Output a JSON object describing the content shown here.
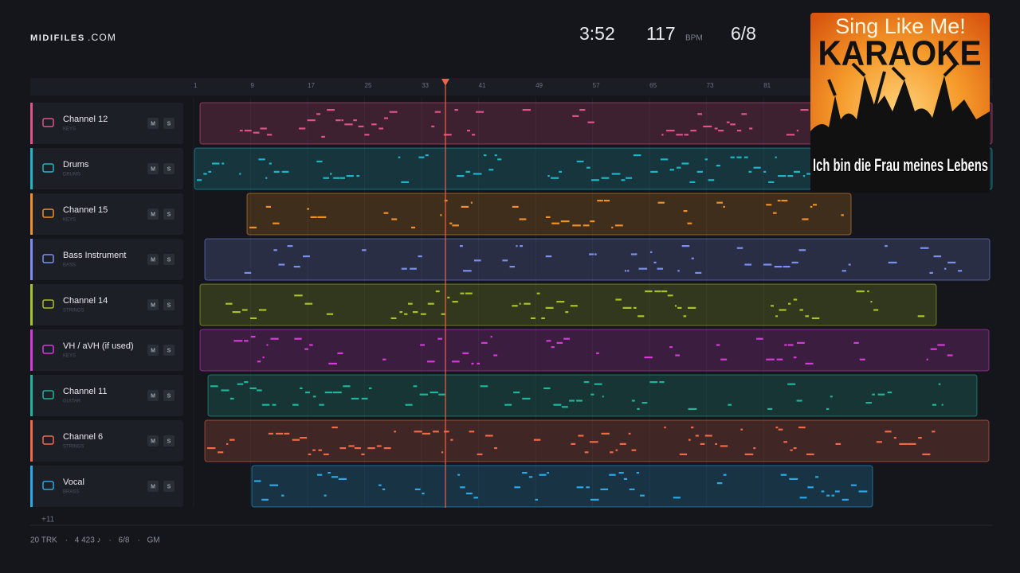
{
  "header": {
    "brand": "MIDIFILES",
    "domain": ".COM",
    "duration": "3:52",
    "tempo": "117",
    "tempo_unit": "BPM",
    "meter": "6/8"
  },
  "album": {
    "line1": "Sing Like Me!",
    "line2": "KARAOKE",
    "caption": "Ich bin die Frau meines Lebens"
  },
  "ruler": [
    1,
    9,
    17,
    25,
    33,
    41,
    49,
    57,
    65,
    73,
    81
  ],
  "buttons": {
    "mute": "M",
    "solo": "S"
  },
  "tracks": [
    {
      "name": "Channel 12",
      "kind": "KEYS",
      "color": "#e0528a"
    },
    {
      "name": "Drums",
      "kind": "DRUMS",
      "color": "#1fb5c9"
    },
    {
      "name": "Channel 15",
      "kind": "KEYS",
      "color": "#f0902a"
    },
    {
      "name": "Bass Instrument",
      "kind": "BASS",
      "color": "#7b8ff0"
    },
    {
      "name": "Channel 14",
      "kind": "STRINGS",
      "color": "#a8c22a"
    },
    {
      "name": "VH / aVH (if used)",
      "kind": "KEYS",
      "color": "#d83ad8"
    },
    {
      "name": "Channel 11",
      "kind": "GUITAR",
      "color": "#1fb59a"
    },
    {
      "name": "Channel 6",
      "kind": "STRINGS",
      "color": "#f06a4a"
    },
    {
      "name": "Vocal",
      "kind": "BRASS",
      "color": "#2aa8e8"
    }
  ],
  "more": "+11",
  "footer": {
    "items": [
      "20 TRK",
      "4 423 ♪",
      "6/8",
      "GM"
    ],
    "separator": "·"
  }
}
